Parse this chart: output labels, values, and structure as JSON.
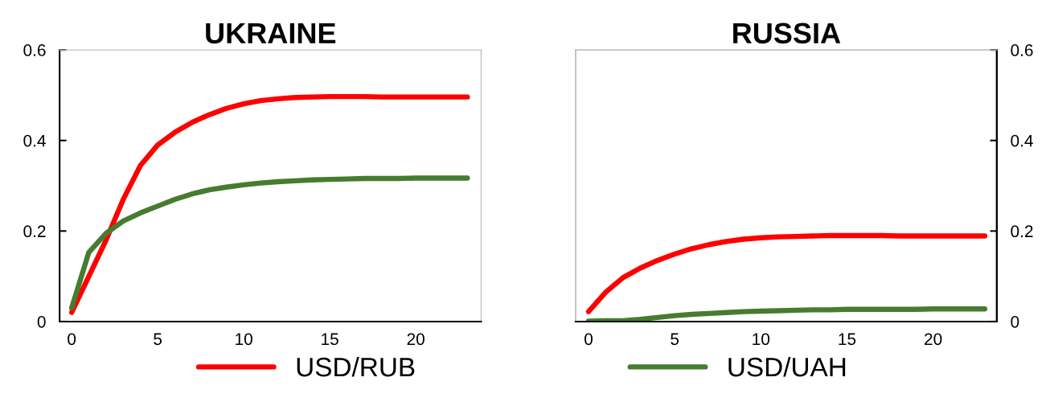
{
  "chart_data": [
    {
      "type": "line",
      "title": "UKRAINE",
      "x": [
        0,
        1,
        2,
        3,
        4,
        5,
        6,
        7,
        8,
        9,
        10,
        11,
        12,
        13,
        14,
        15,
        16,
        17,
        18,
        19,
        20,
        21,
        22,
        23
      ],
      "series": [
        {
          "name": "USD/RUB",
          "color": "#ff0000",
          "values": [
            0.02,
            0.1,
            0.18,
            0.27,
            0.345,
            0.39,
            0.418,
            0.44,
            0.457,
            0.471,
            0.481,
            0.488,
            0.492,
            0.495,
            0.496,
            0.497,
            0.497,
            0.497,
            0.496,
            0.496,
            0.496,
            0.496,
            0.496,
            0.496
          ]
        },
        {
          "name": "USD/UAH",
          "color": "#467c2f",
          "values": [
            0.03,
            0.153,
            0.195,
            0.222,
            0.24,
            0.255,
            0.27,
            0.282,
            0.291,
            0.297,
            0.302,
            0.306,
            0.309,
            0.311,
            0.313,
            0.314,
            0.315,
            0.316,
            0.316,
            0.316,
            0.317,
            0.317,
            0.317,
            0.317
          ]
        }
      ],
      "xlim": [
        -0.7,
        23.8
      ],
      "xticks": [
        0,
        5,
        10,
        15,
        20
      ],
      "ylim": [
        0,
        0.6
      ],
      "yticks": [
        0,
        0.2,
        0.4,
        0.6
      ],
      "legend": "bottom",
      "grid": false,
      "marker": "none",
      "line_style": "solid"
    },
    {
      "type": "line",
      "title": "RUSSIA",
      "x": [
        0,
        1,
        2,
        3,
        4,
        5,
        6,
        7,
        8,
        9,
        10,
        11,
        12,
        13,
        14,
        15,
        16,
        17,
        18,
        19,
        20,
        21,
        22,
        23
      ],
      "series": [
        {
          "name": "USD/RUB",
          "color": "#ff0000",
          "axis": "y2",
          "values": [
            0.022,
            0.065,
            0.097,
            0.118,
            0.135,
            0.149,
            0.161,
            0.17,
            0.177,
            0.182,
            0.185,
            0.187,
            0.188,
            0.189,
            0.19,
            0.19,
            0.19,
            0.19,
            0.189,
            0.189,
            0.189,
            0.189,
            0.189,
            0.189
          ]
        },
        {
          "name": "USD/UAH",
          "color": "#467c2f",
          "axis": "y2",
          "values": [
            0.001,
            0.002,
            0.002,
            0.005,
            0.009,
            0.013,
            0.016,
            0.018,
            0.02,
            0.022,
            0.023,
            0.024,
            0.025,
            0.026,
            0.026,
            0.027,
            0.027,
            0.027,
            0.027,
            0.027,
            0.028,
            0.028,
            0.028,
            0.028
          ]
        }
      ],
      "xlim": [
        -0.75,
        23.7
      ],
      "xticks": [
        0,
        5,
        10,
        15,
        20
      ],
      "y2lim": [
        0,
        0.6
      ],
      "y2ticks": [
        0,
        0.2,
        0.4,
        0.6
      ],
      "legend": false,
      "grid": false,
      "marker": "none",
      "line_style": "solid"
    }
  ]
}
